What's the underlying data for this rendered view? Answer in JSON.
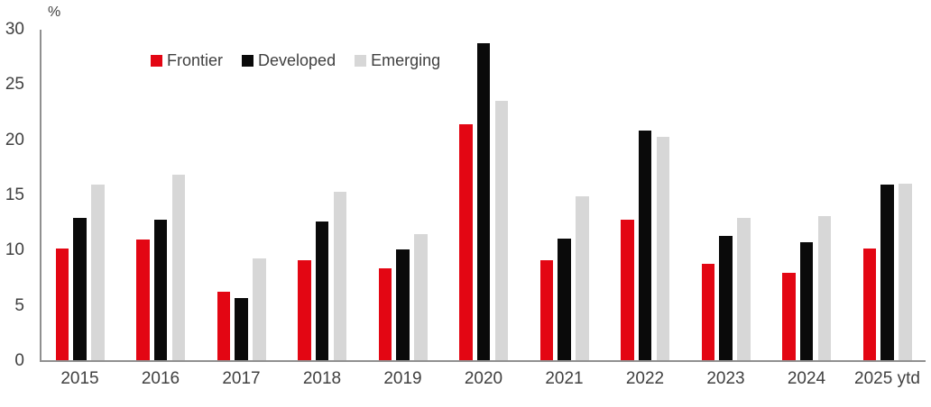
{
  "chart_data": {
    "type": "bar",
    "title": "",
    "ylabel": "%",
    "xlabel": "",
    "ylim": [
      0,
      30
    ],
    "yticks": [
      0,
      5,
      10,
      15,
      20,
      25,
      30
    ],
    "grid": false,
    "legend_position": "top-left",
    "categories": [
      "2015",
      "2016",
      "2017",
      "2018",
      "2019",
      "2020",
      "2021",
      "2022",
      "2023",
      "2024",
      "2025 ytd"
    ],
    "series": [
      {
        "name": "Frontier",
        "color": "#e30613",
        "values": [
          10.2,
          11.0,
          6.3,
          9.1,
          8.4,
          21.4,
          9.1,
          12.8,
          8.8,
          8.0,
          10.2
        ]
      },
      {
        "name": "Developed",
        "color": "#0a0a0a",
        "values": [
          13.0,
          12.8,
          5.7,
          12.6,
          10.1,
          28.8,
          11.1,
          20.9,
          11.3,
          10.8,
          16.0
        ]
      },
      {
        "name": "Emerging",
        "color": "#d7d7d7",
        "values": [
          16.0,
          16.9,
          9.3,
          15.3,
          11.5,
          23.6,
          14.9,
          20.3,
          13.0,
          13.1,
          16.1
        ]
      }
    ]
  },
  "styles": {
    "axis_color": "#909090",
    "text_color": "#404040",
    "background": "#ffffff"
  }
}
